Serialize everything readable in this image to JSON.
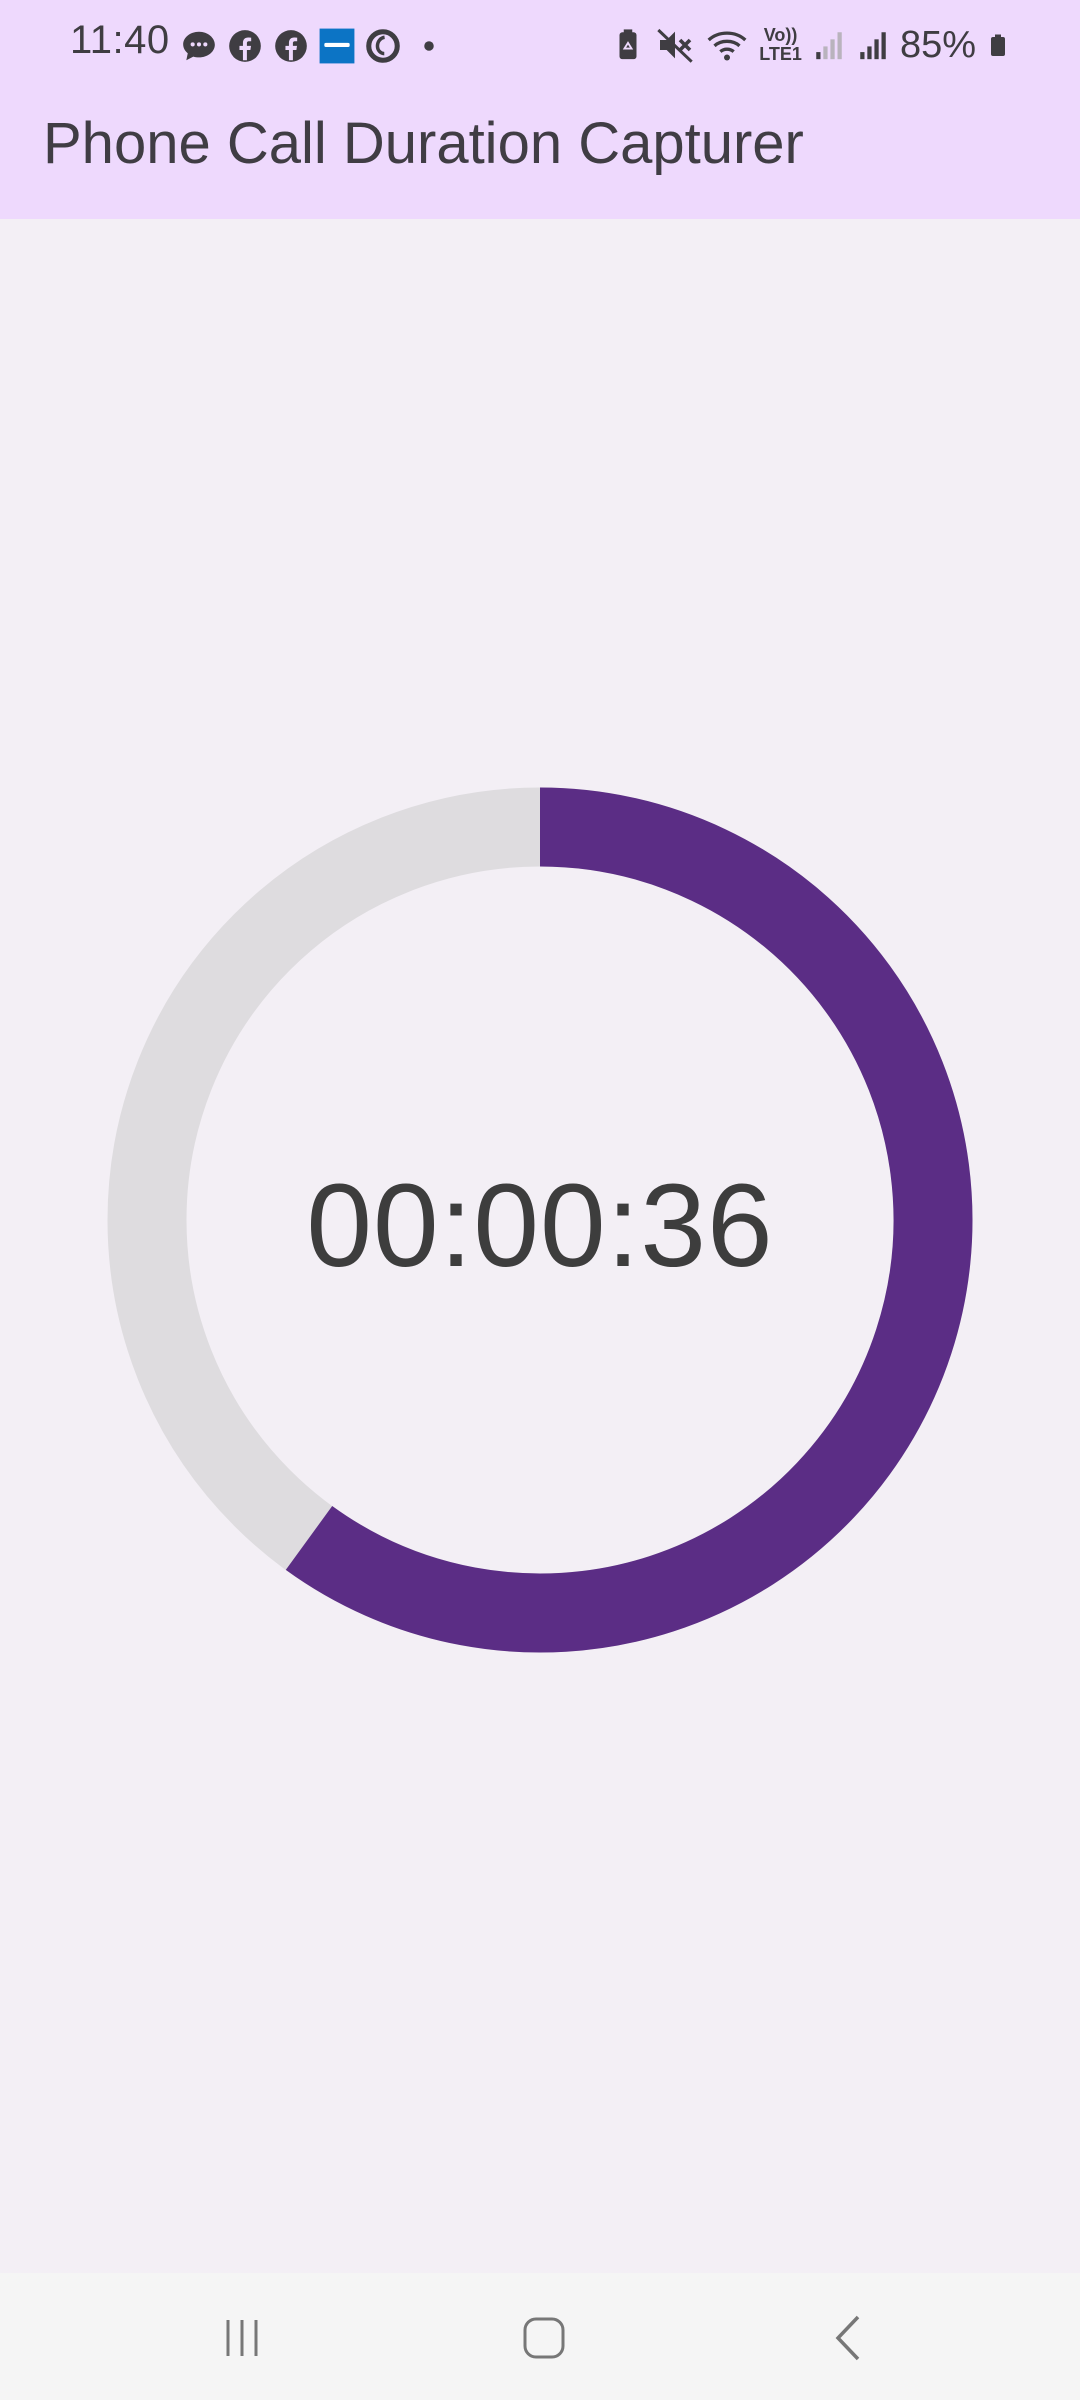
{
  "status_bar": {
    "time": "11:40",
    "battery_percent": "85%",
    "notification_icons": [
      "messages-icon",
      "facebook-icon",
      "facebook-icon",
      "bank-app-icon",
      "vodafone-icon",
      "more-dot-icon"
    ],
    "system_icons": [
      "battery-saver-icon",
      "mute-icon",
      "wifi-icon",
      "volte-lte-icon",
      "signal-weak-icon",
      "signal-icon",
      "battery-icon"
    ],
    "volte_label": "Vo))",
    "lte_label": "LTE1"
  },
  "app_bar": {
    "title": "Phone Call Duration Capturer"
  },
  "timer": {
    "display": "00:00:36",
    "progress": 0.6,
    "progress_color": "#5b2d85",
    "track_color": "#dedcdf"
  },
  "nav_bar": {
    "buttons": [
      "recent-apps",
      "home",
      "back"
    ]
  }
}
